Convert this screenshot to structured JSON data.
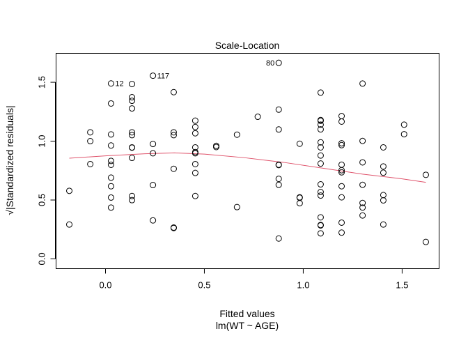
{
  "chart_data": {
    "type": "scatter",
    "title": "Scale-Location",
    "xlabel": "Fitted values",
    "subtitle": "lm(WT ~ AGE)",
    "ylabel": "√|Standardized residuals|",
    "xlim": [
      -0.25,
      1.687
    ],
    "ylim": [
      -0.083,
      1.746
    ],
    "xticks": [
      0.0,
      0.5,
      1.0,
      1.5
    ],
    "xtick_labels": [
      "0.0",
      "0.5",
      "1.0",
      "1.5"
    ],
    "yticks": [
      0.0,
      0.5,
      1.0,
      1.5
    ],
    "ytick_labels": [
      "0.0",
      "0.5",
      "1.0",
      "1.5"
    ],
    "grid": false,
    "smooth_color": "#DF536B",
    "points": [
      [
        -0.183,
        0.578
      ],
      [
        -0.183,
        0.292
      ],
      [
        -0.077,
        1.075
      ],
      [
        -0.077,
        1.0
      ],
      [
        -0.077,
        0.805
      ],
      [
        0.028,
        1.49
      ],
      [
        0.028,
        1.32
      ],
      [
        0.028,
        1.057
      ],
      [
        0.028,
        0.963
      ],
      [
        0.028,
        0.832
      ],
      [
        0.028,
        0.799
      ],
      [
        0.028,
        0.69
      ],
      [
        0.028,
        0.617
      ],
      [
        0.028,
        0.521
      ],
      [
        0.028,
        0.436
      ],
      [
        0.134,
        1.485
      ],
      [
        0.134,
        1.373
      ],
      [
        0.134,
        1.343
      ],
      [
        0.134,
        1.278
      ],
      [
        0.134,
        1.075
      ],
      [
        0.134,
        1.051
      ],
      [
        0.134,
        0.947
      ],
      [
        0.134,
        0.945
      ],
      [
        0.134,
        0.858
      ],
      [
        0.134,
        0.534
      ],
      [
        0.134,
        0.499
      ],
      [
        0.24,
        1.556
      ],
      [
        0.24,
        0.976
      ],
      [
        0.24,
        0.897
      ],
      [
        0.24,
        0.627
      ],
      [
        0.24,
        0.327
      ],
      [
        0.345,
        1.416
      ],
      [
        0.345,
        1.075
      ],
      [
        0.345,
        1.051
      ],
      [
        0.345,
        0.765
      ],
      [
        0.345,
        0.266
      ],
      [
        0.345,
        0.262
      ],
      [
        0.454,
        1.174
      ],
      [
        0.454,
        1.12
      ],
      [
        0.454,
        1.067
      ],
      [
        0.454,
        0.947
      ],
      [
        0.454,
        0.907
      ],
      [
        0.454,
        0.897
      ],
      [
        0.454,
        0.805
      ],
      [
        0.454,
        0.73
      ],
      [
        0.454,
        0.534
      ],
      [
        0.56,
        0.96
      ],
      [
        0.56,
        0.95
      ],
      [
        0.665,
        1.055
      ],
      [
        0.665,
        0.44
      ],
      [
        0.77,
        1.207
      ],
      [
        0.876,
        1.665
      ],
      [
        0.876,
        1.268
      ],
      [
        0.876,
        1.099
      ],
      [
        0.876,
        0.8
      ],
      [
        0.876,
        0.797
      ],
      [
        0.876,
        0.68
      ],
      [
        0.876,
        0.629
      ],
      [
        0.876,
        0.173
      ],
      [
        0.982,
        0.978
      ],
      [
        0.982,
        0.523
      ],
      [
        0.982,
        0.519
      ],
      [
        0.982,
        0.473
      ],
      [
        1.088,
        1.412
      ],
      [
        1.088,
        1.179
      ],
      [
        1.088,
        1.173
      ],
      [
        1.088,
        1.14
      ],
      [
        1.088,
        1.1
      ],
      [
        1.088,
        0.99
      ],
      [
        1.088,
        0.947
      ],
      [
        1.088,
        0.878
      ],
      [
        1.088,
        0.81
      ],
      [
        1.088,
        0.633
      ],
      [
        1.088,
        0.568
      ],
      [
        1.088,
        0.538
      ],
      [
        1.088,
        0.353
      ],
      [
        1.088,
        0.288
      ],
      [
        1.088,
        0.284
      ],
      [
        1.088,
        0.217
      ],
      [
        1.194,
        1.213
      ],
      [
        1.194,
        1.166
      ],
      [
        1.194,
        0.982
      ],
      [
        1.194,
        0.966
      ],
      [
        1.194,
        0.8
      ],
      [
        1.194,
        0.753
      ],
      [
        1.194,
        0.735
      ],
      [
        1.194,
        0.617
      ],
      [
        1.194,
        0.523
      ],
      [
        1.194,
        0.308
      ],
      [
        1.194,
        0.223
      ],
      [
        1.3,
        1.489
      ],
      [
        1.3,
        1.002
      ],
      [
        1.3,
        0.82
      ],
      [
        1.3,
        0.629
      ],
      [
        1.3,
        0.475
      ],
      [
        1.3,
        0.436
      ],
      [
        1.3,
        0.369
      ],
      [
        1.405,
        0.947
      ],
      [
        1.405,
        0.785
      ],
      [
        1.405,
        0.732
      ],
      [
        1.405,
        0.542
      ],
      [
        1.405,
        0.497
      ],
      [
        1.405,
        0.292
      ],
      [
        1.51,
        1.14
      ],
      [
        1.51,
        1.059
      ],
      [
        1.62,
        0.714
      ],
      [
        1.62,
        0.144
      ]
    ],
    "point_labels": [
      {
        "label": "12",
        "x": 0.028,
        "y": 1.49,
        "side": "right"
      },
      {
        "label": "117",
        "x": 0.24,
        "y": 1.556,
        "side": "right"
      },
      {
        "label": "80",
        "x": 0.876,
        "y": 1.665,
        "side": "left"
      }
    ],
    "smooth": [
      [
        -0.183,
        0.855
      ],
      [
        0.0,
        0.875
      ],
      [
        0.2,
        0.893
      ],
      [
        0.35,
        0.9
      ],
      [
        0.5,
        0.89
      ],
      [
        0.7,
        0.86
      ],
      [
        0.9,
        0.82
      ],
      [
        1.1,
        0.77
      ],
      [
        1.3,
        0.72
      ],
      [
        1.5,
        0.68
      ],
      [
        1.62,
        0.65
      ]
    ]
  }
}
